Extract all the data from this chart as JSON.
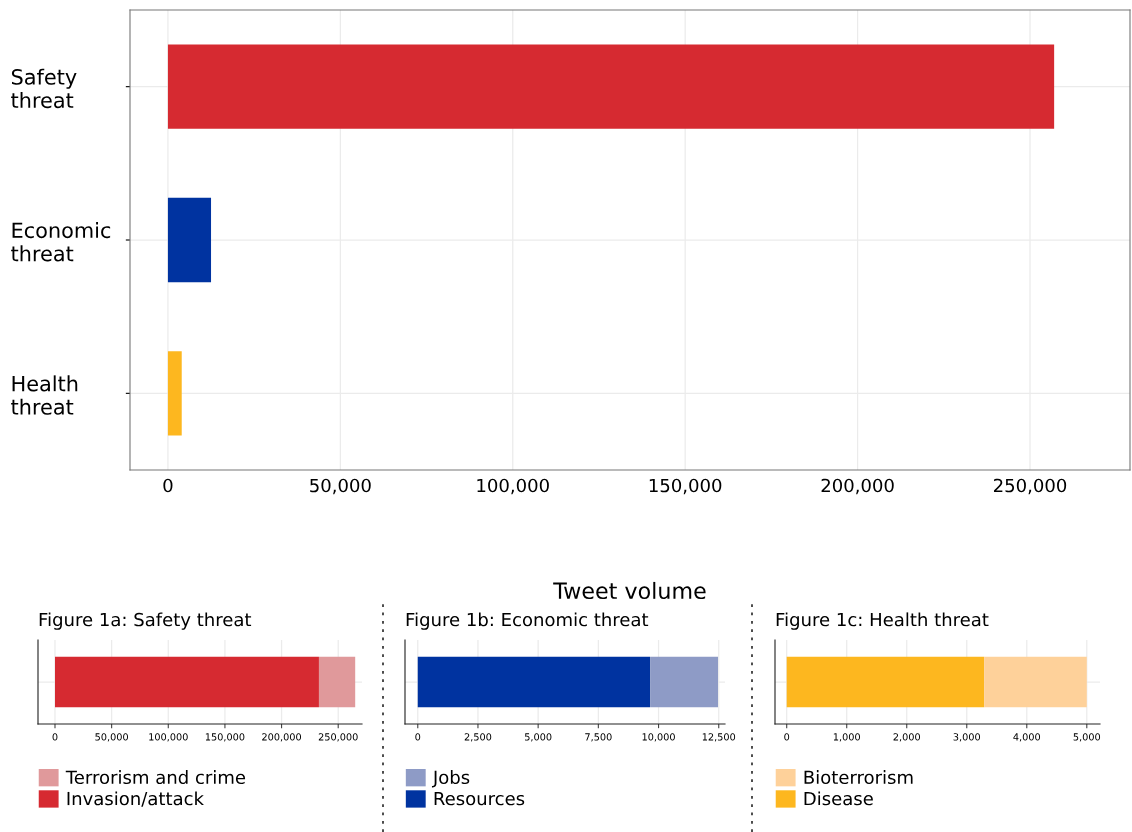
{
  "chart_data": [
    {
      "type": "bar",
      "orientation": "horizontal",
      "categories": [
        "Safety threat",
        "Economic threat",
        "Health threat"
      ],
      "values": [
        257000,
        12500,
        4000
      ],
      "colors": [
        "#d62a31",
        "#0033a0",
        "#fdb71f"
      ],
      "xlabel": "Tweet volume",
      "xlim": [
        -11000,
        279000
      ],
      "xticks": [
        0,
        {
          "value": 50000,
          "label": "50,000"
        },
        {
          "value": 100000,
          "label": "100,000"
        },
        {
          "value": 150000,
          "label": "150,000"
        },
        {
          "value": 200000,
          "label": "200,000"
        },
        {
          "value": 250000,
          "label": "250,000"
        }
      ],
      "grid": true
    },
    {
      "type": "bar",
      "orientation": "horizontal",
      "stacked": true,
      "title": "Figure 1a: Safety threat",
      "categories": [
        null
      ],
      "series": [
        {
          "name": "Invasion/attack",
          "color": "#d62a31",
          "values": [
            233000
          ]
        },
        {
          "name": "Terrorism and crime",
          "color": "#e0999b",
          "values": [
            32000
          ]
        }
      ],
      "xlim": [
        -15000,
        271000
      ],
      "xticks": [
        0,
        {
          "value": 50000,
          "label": "50,000"
        },
        {
          "value": 100000,
          "label": "100,000"
        },
        {
          "value": 150000,
          "label": "150,000"
        },
        {
          "value": 200000,
          "label": "200,000"
        },
        {
          "value": 250000,
          "label": "250,000"
        }
      ],
      "grid": true,
      "legend": "bottom"
    },
    {
      "type": "bar",
      "orientation": "horizontal",
      "stacked": true,
      "title": "Figure 1b: Economic threat",
      "categories": [
        null
      ],
      "series": [
        {
          "name": "Resources",
          "color": "#0033a0",
          "values": [
            9650
          ]
        },
        {
          "name": "Jobs",
          "color": "#8e9bc6",
          "values": [
            2820
          ]
        }
      ],
      "xlim": [
        -530,
        12760
      ],
      "xticks": [
        0,
        {
          "value": 2500,
          "label": "2,500"
        },
        {
          "value": 5000,
          "label": "5,000"
        },
        {
          "value": 7500,
          "label": "7,500"
        },
        {
          "value": 10000,
          "label": "10,000"
        },
        {
          "value": 12500,
          "label": "12,500"
        }
      ],
      "grid": true,
      "legend": "bottom"
    },
    {
      "type": "bar",
      "orientation": "horizontal",
      "stacked": true,
      "title": "Figure 1c: Health threat",
      "categories": [
        null
      ],
      "series": [
        {
          "name": "Disease",
          "color": "#fdb71f",
          "values": [
            3290
          ]
        },
        {
          "name": "Bioterrorism",
          "color": "#fed19a",
          "values": [
            1710
          ]
        }
      ],
      "xlim": [
        -195,
        5220
      ],
      "xticks": [
        0,
        {
          "value": 1000,
          "label": "1,000"
        },
        {
          "value": 2000,
          "label": "2,000"
        },
        {
          "value": 3000,
          "label": "3,000"
        },
        {
          "value": 4000,
          "label": "4,000"
        },
        {
          "value": 5000,
          "label": "5,000"
        }
      ],
      "grid": true,
      "legend": "bottom"
    }
  ]
}
